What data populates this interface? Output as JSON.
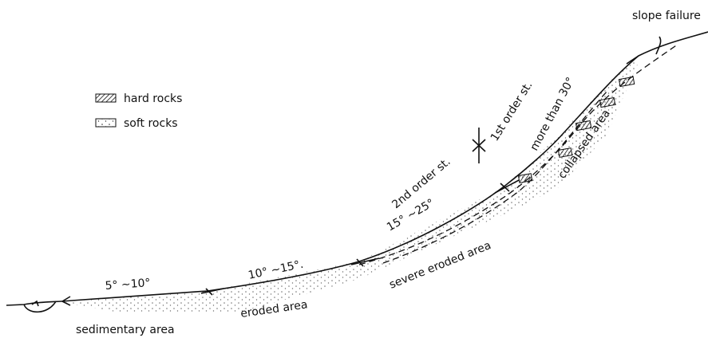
{
  "legend": [
    {
      "label": "hard rocks"
    },
    {
      "label": "soft rocks"
    }
  ],
  "labels": {
    "slope_failure": "slope failure",
    "first_order": "1st order st.",
    "second_order": "2nd order st.",
    "steep": "more than 30°",
    "collapsed": "collapsed area",
    "mid_angle": "15° ~25°",
    "severe": "severe eroded area",
    "low_angle": "10° ~15°.",
    "flat_angle": "5° ~10°",
    "eroded": "eroded area",
    "sedimentary": "sedimentary area"
  }
}
